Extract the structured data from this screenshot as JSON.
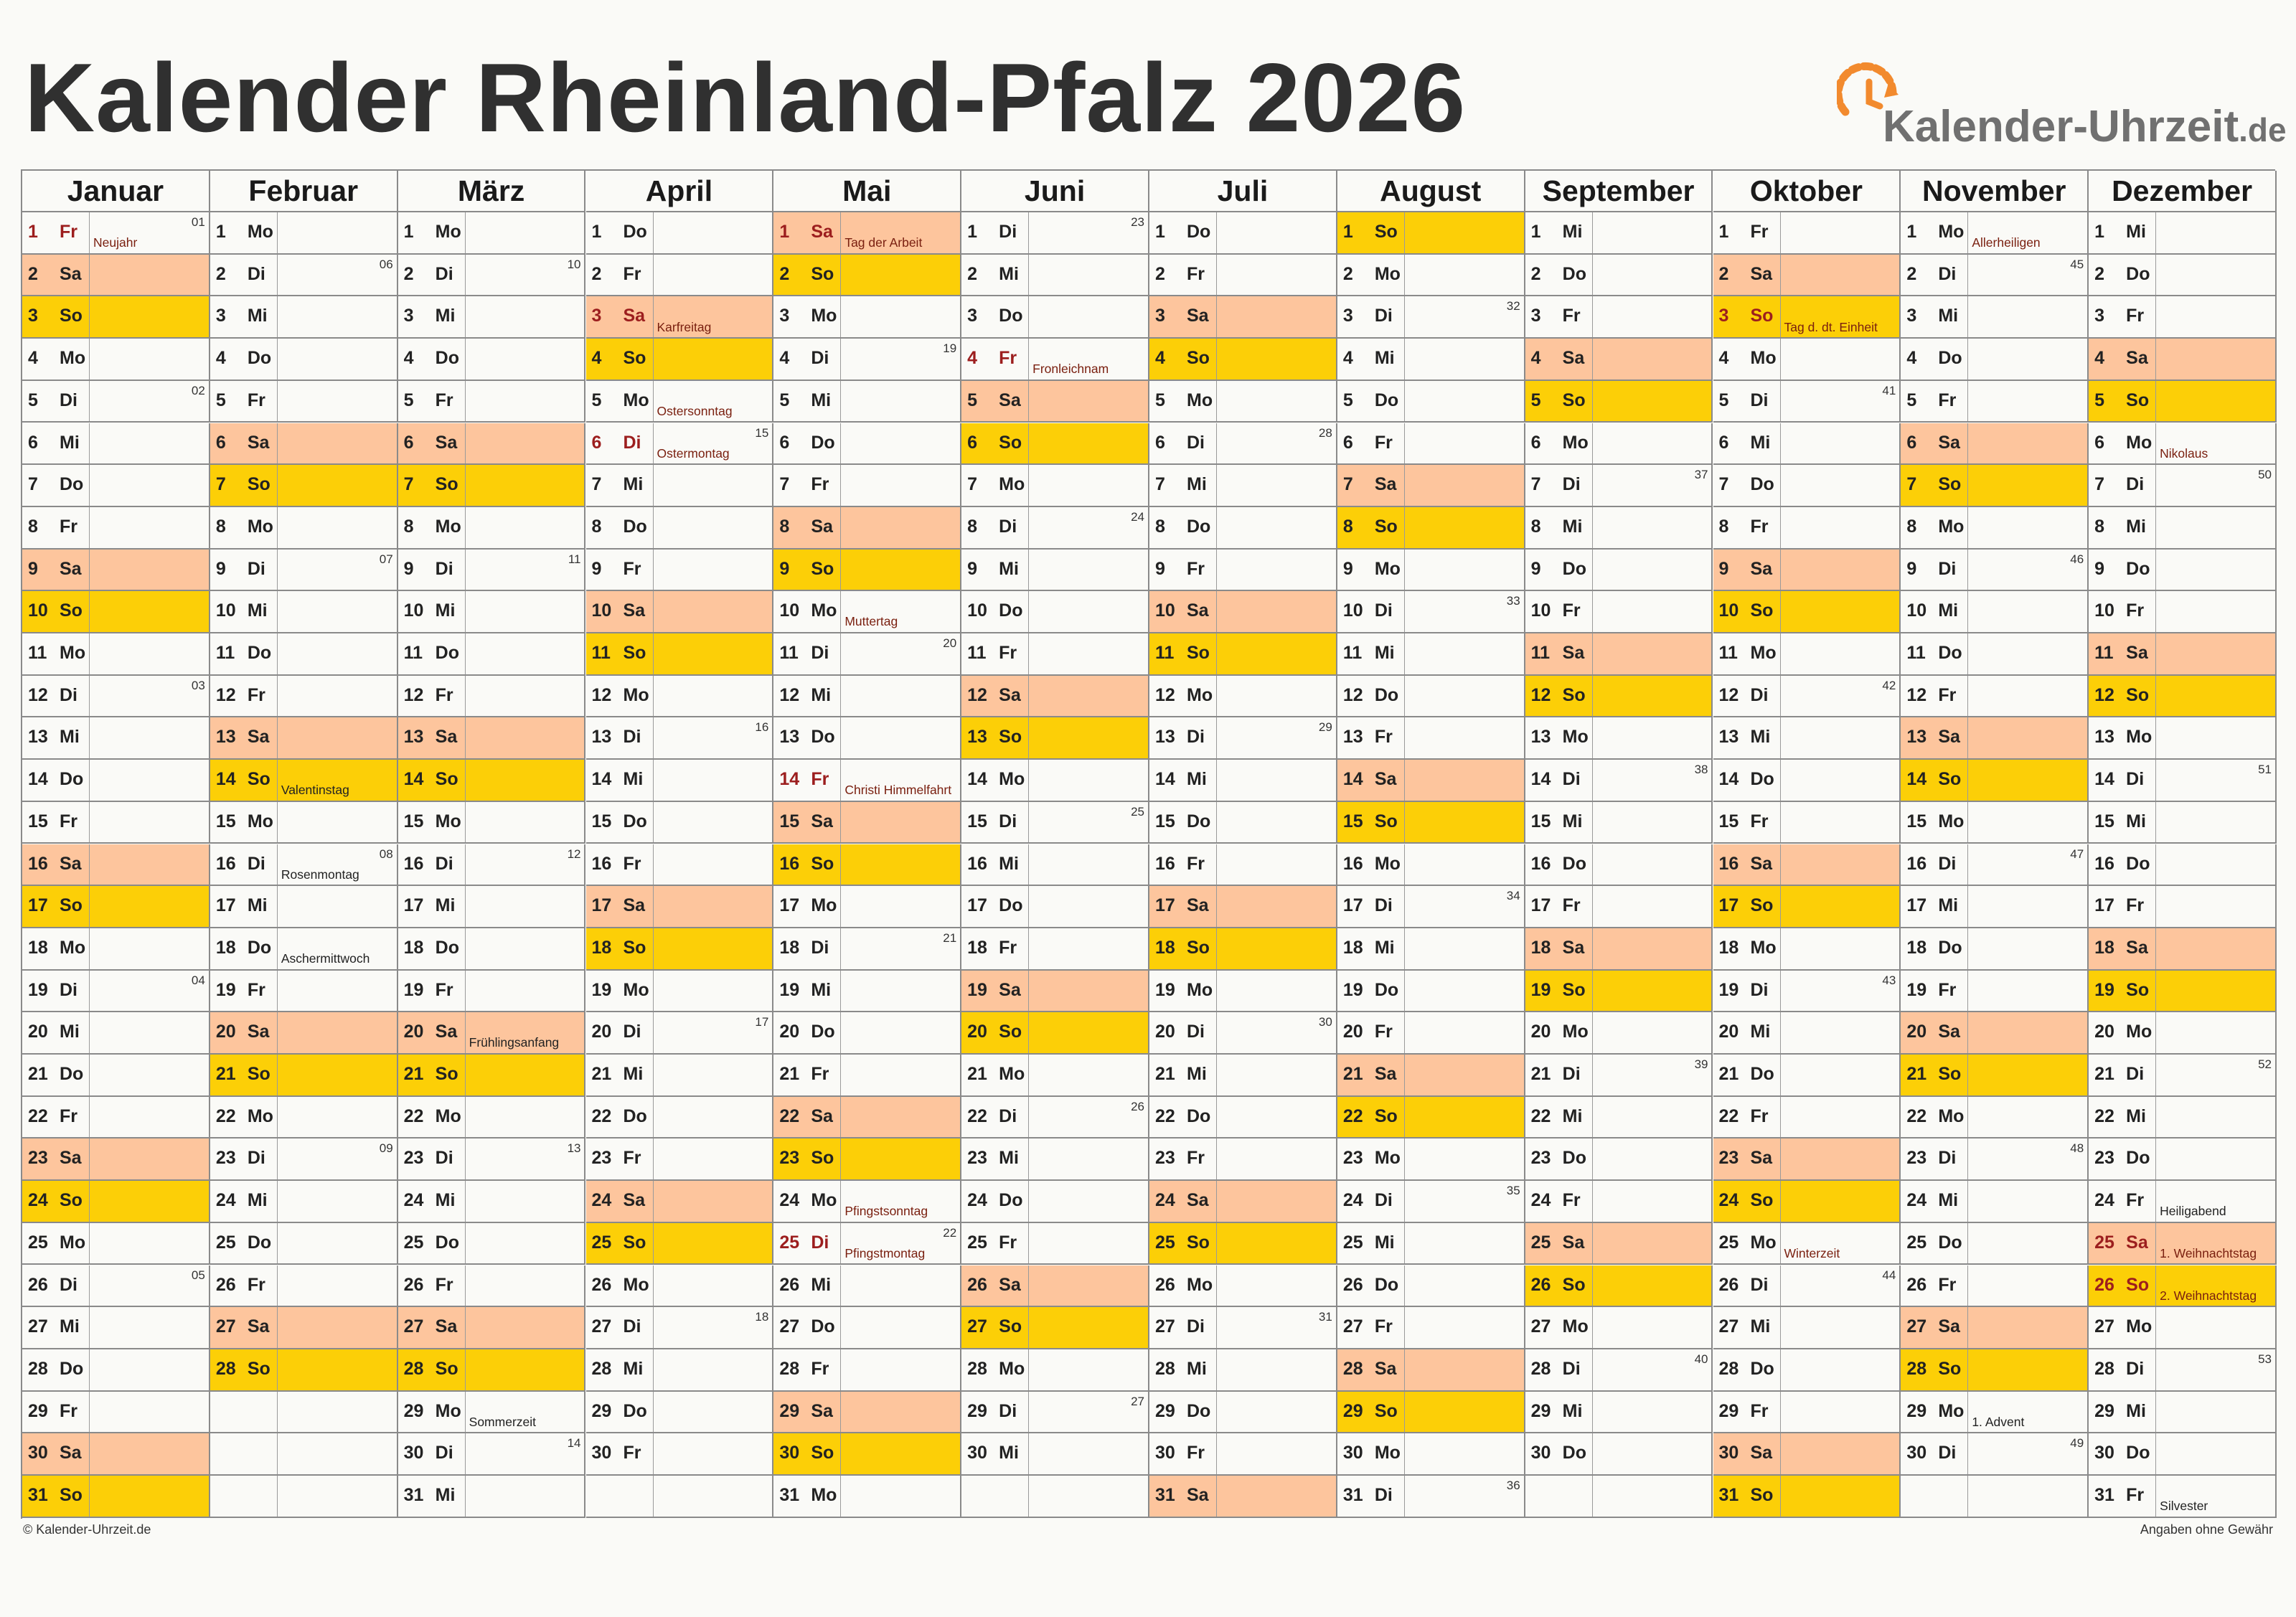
{
  "title": "Kalender Rheinland-Pfalz 2026",
  "logo": {
    "name": "Kalender-Uhrzeit",
    "tld": ".de",
    "icon": "clock-arrow-icon",
    "color": "#f28a2e"
  },
  "colors": {
    "saturday": "#fdc59d",
    "sunday": "#fccf07",
    "holiday_text": "#9c1e1e",
    "grid": "#8a8a8a"
  },
  "footer": {
    "left": "© Kalender-Uhrzeit.de",
    "right": "Angaben ohne Gewähr"
  },
  "months": [
    {
      "name": "Januar",
      "days": 31,
      "start": 4,
      "holidays": {
        "1": "Neujahr"
      },
      "notes": {},
      "kw": {
        "1": "01",
        "5": "02",
        "12": "03",
        "19": "04",
        "26": "05"
      }
    },
    {
      "name": "Februar",
      "days": 28,
      "start": 0,
      "holidays": {},
      "notes": {
        "14": "Valentinstag",
        "16": "Rosenmontag",
        "18": "Aschermittwoch"
      },
      "kw": {
        "2": "06",
        "9": "07",
        "16": "08",
        "23": "09"
      }
    },
    {
      "name": "März",
      "days": 31,
      "start": 0,
      "holidays": {},
      "notes": {
        "20": "Frühlingsanfang",
        "29": "Sommerzeit"
      },
      "kw": {
        "2": "10",
        "9": "11",
        "16": "12",
        "23": "13",
        "30": "14"
      }
    },
    {
      "name": "April",
      "days": 30,
      "start": 3,
      "holidays": {
        "3": "Karfreitag",
        "5": "Ostersonntag",
        "6": "Ostermontag"
      },
      "notes": {},
      "kw": {
        "6": "15",
        "13": "16",
        "20": "17",
        "27": "18"
      }
    },
    {
      "name": "Mai",
      "days": 31,
      "start": 5,
      "holidays": {
        "1": "Tag der Arbeit",
        "10": "Muttertag",
        "14": "Christi Himmelfahrt",
        "24": "Pfingstsonntag",
        "25": "Pfingstmontag"
      },
      "notes": {},
      "kw": {
        "4": "19",
        "11": "20",
        "18": "21",
        "25": "22"
      }
    },
    {
      "name": "Juni",
      "days": 30,
      "start": 1,
      "holidays": {
        "4": "Fronleichnam"
      },
      "notes": {},
      "kw": {
        "1": "23",
        "8": "24",
        "15": "25",
        "22": "26",
        "29": "27"
      }
    },
    {
      "name": "Juli",
      "days": 31,
      "start": 3,
      "holidays": {},
      "notes": {},
      "kw": {
        "6": "28",
        "13": "29",
        "20": "30",
        "27": "31"
      }
    },
    {
      "name": "August",
      "days": 31,
      "start": 6,
      "holidays": {},
      "notes": {},
      "kw": {
        "3": "32",
        "10": "33",
        "17": "34",
        "24": "35",
        "31": "36"
      }
    },
    {
      "name": "September",
      "days": 30,
      "start": 2,
      "holidays": {},
      "notes": {},
      "kw": {
        "7": "37",
        "14": "38",
        "21": "39",
        "28": "40"
      }
    },
    {
      "name": "Oktober",
      "days": 31,
      "start": 4,
      "holidays": {
        "3": "Tag d. dt. Einheit",
        "25": "Winterzeit"
      },
      "notes": {},
      "kw": {
        "5": "41",
        "12": "42",
        "19": "43",
        "26": "44"
      }
    },
    {
      "name": "November",
      "days": 30,
      "start": 0,
      "holidays": {
        "1": "Allerheiligen"
      },
      "notes": {
        "29": "1. Advent"
      },
      "kw": {
        "2": "45",
        "9": "46",
        "16": "47",
        "23": "48",
        "30": "49"
      }
    },
    {
      "name": "Dezember",
      "days": 31,
      "start": 2,
      "holidays": {
        "6": "Nikolaus",
        "25": "1. Weihnachtstag",
        "26": "2. Weihnachtstag"
      },
      "notes": {
        "24": "Heiligabend",
        "31": "Silvester"
      },
      "kw": {
        "7": "50",
        "14": "51",
        "21": "52",
        "28": "53"
      }
    }
  ],
  "weekday_abbr": [
    "Mo",
    "Di",
    "Mi",
    "Do",
    "Fr",
    "Sa",
    "So"
  ]
}
